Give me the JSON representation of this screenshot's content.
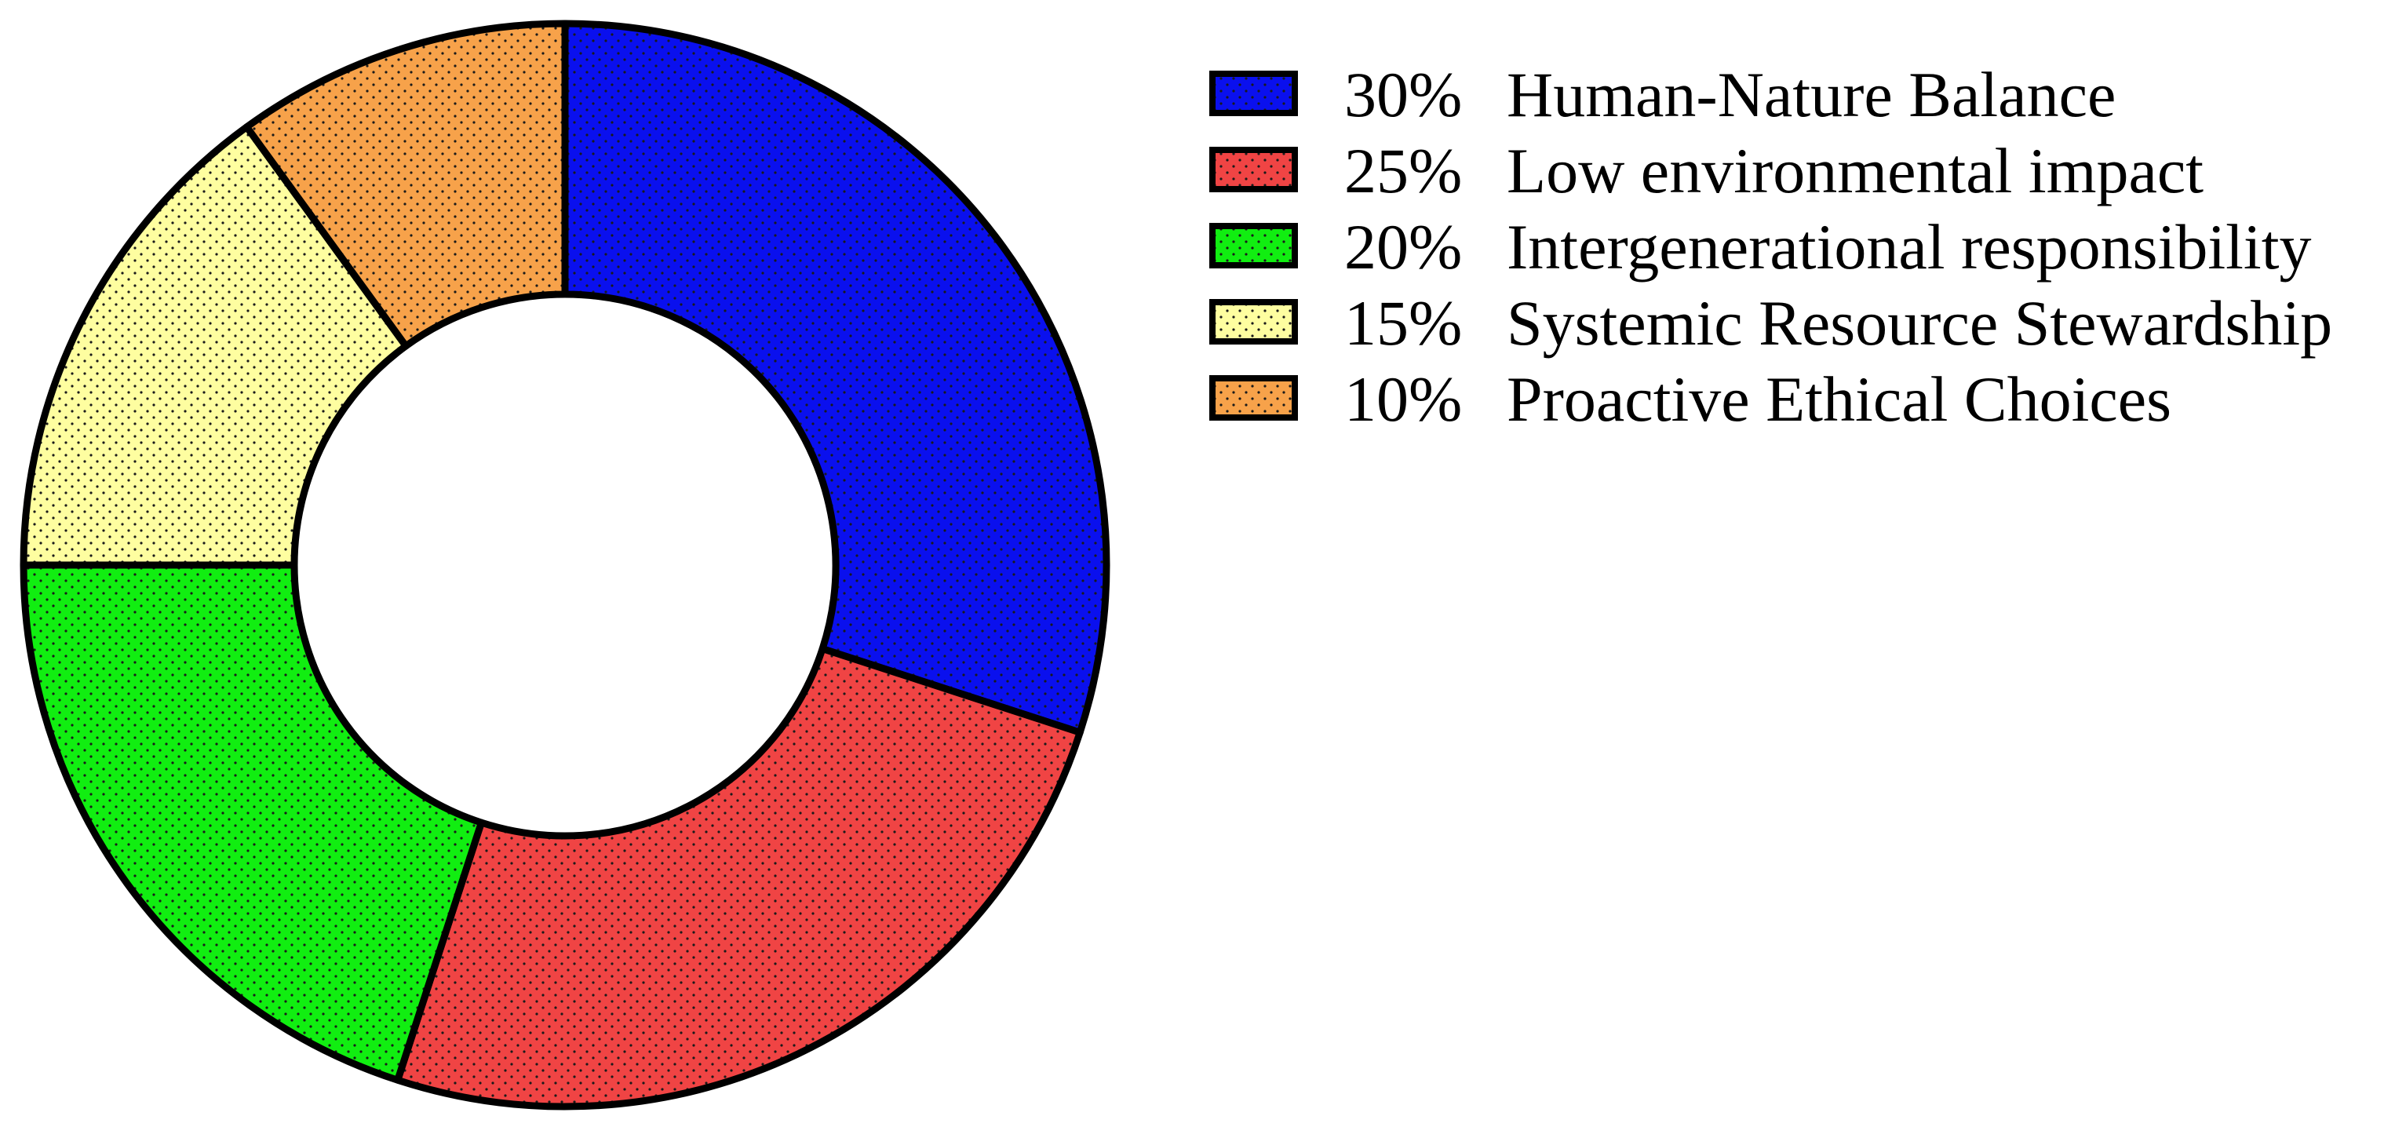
{
  "chart_data": {
    "type": "pie",
    "donut": true,
    "start_angle_deg": 90,
    "direction": "clockwise",
    "legend_position": "right",
    "fill_pattern": "dotted",
    "slices": [
      {
        "percent_label": "30%",
        "label": "Human-Nature Balance",
        "value": 30,
        "color": "#0a10ee"
      },
      {
        "percent_label": "25%",
        "label": "Low environmental impact",
        "value": 25,
        "color": "#f04444"
      },
      {
        "percent_label": "20%",
        "label": "Intergenerational responsibility",
        "value": 20,
        "color": "#11ee11"
      },
      {
        "percent_label": "15%",
        "label": "Systemic Resource Stewardship",
        "value": 15,
        "color": "#fefea0"
      },
      {
        "percent_label": "10%",
        "label": "Proactive Ethical Choices",
        "value": 10,
        "color": "#f7a24a"
      }
    ]
  }
}
